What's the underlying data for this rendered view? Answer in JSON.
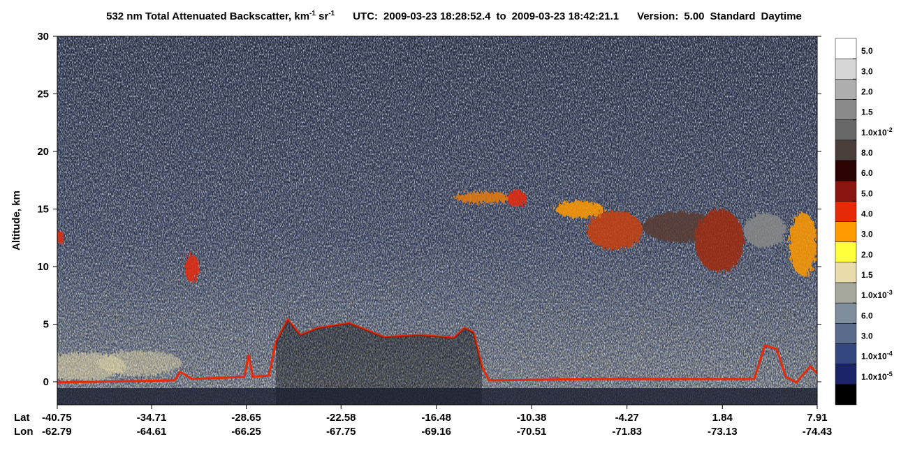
{
  "chart_data": {
    "type": "heatmap",
    "title": {
      "product": [
        {
          "text": "532 nm Total Attenuated Backscatter, km",
          "sup": "-1"
        },
        {
          "text": " sr",
          "sup": "-1"
        }
      ],
      "utc_label": "UTC:",
      "start": "2009-03-23 18:28:52.4",
      "to": "to",
      "end": "2009-03-23 18:42:21.1",
      "version_label": "Version:",
      "version": "5.00",
      "mode": "Standard",
      "time": "Daytime"
    },
    "y_label": "Altitude, km",
    "ylim": [
      -2,
      30
    ],
    "yticks": [
      0,
      5,
      10,
      15,
      20,
      25,
      30
    ],
    "x_row_labels": [
      "Lat",
      "Lon"
    ],
    "xlim": [
      -40.75,
      7.91
    ],
    "xticks": [
      -40.75,
      -34.71,
      -28.65,
      -22.58,
      -16.48,
      -10.38,
      -4.27,
      1.84,
      7.91
    ],
    "lon_ticks": [
      -62.79,
      -64.61,
      -66.25,
      -67.75,
      -69.16,
      -70.51,
      -71.83,
      -73.13,
      -74.43
    ],
    "colorbar": {
      "colors": [
        "#ffffff",
        "#d6d6d6",
        "#aeaeae",
        "#8a8a8a",
        "#686868",
        "#4a3e3b",
        "#2c0303",
        "#8a1410",
        "#e62a08",
        "#ff9a00",
        "#ffff3c",
        "#e9dcaa",
        "#a7a89c",
        "#7f8e9c",
        "#5b6b8c",
        "#34477e",
        "#1c2468",
        "#000000"
      ],
      "labels": [
        {
          "mantissa": "5.0"
        },
        {
          "mantissa": "3.0"
        },
        {
          "mantissa": "2.0"
        },
        {
          "mantissa": "1.5"
        },
        {
          "mantissa": "1.0x10",
          "exponent": "-2"
        },
        {
          "mantissa": "8.0"
        },
        {
          "mantissa": "6.0"
        },
        {
          "mantissa": "5.0"
        },
        {
          "mantissa": "4.0"
        },
        {
          "mantissa": "3.0"
        },
        {
          "mantissa": "2.0"
        },
        {
          "mantissa": "1.5"
        },
        {
          "mantissa": "1.0x10",
          "exponent": "-3"
        },
        {
          "mantissa": "6.0"
        },
        {
          "mantissa": "3.0"
        },
        {
          "mantissa": "1.0x10",
          "exponent": "-4"
        },
        {
          "mantissa": "1.0x10",
          "exponent": "-5"
        }
      ]
    }
  }
}
